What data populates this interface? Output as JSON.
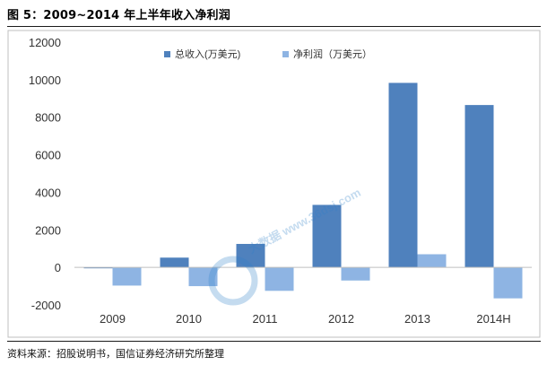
{
  "figure": {
    "title": "图 5：2009~2014 年上半年收入净利润",
    "source": "资料来源：招股说明书，国信证券经济研究所整理",
    "watermark_text": "大数据 www.36dsj.com"
  },
  "colors": {
    "revenue": "#4f81bd",
    "net_profit": "#8eb4e3",
    "grid": "#d9d9d9",
    "frame": "#bfbfbf",
    "axis_text": "#333333"
  },
  "chart_data": {
    "type": "bar",
    "categories": [
      "2009",
      "2010",
      "2011",
      "2012",
      "2013",
      "2014H"
    ],
    "series": [
      {
        "name": "总收入(万美元)",
        "values": [
          -50,
          520,
          1250,
          3330,
          9830,
          8650
        ]
      },
      {
        "name": "净利润（万美元）",
        "values": [
          -970,
          -1000,
          -1250,
          -700,
          700,
          -1650
        ]
      }
    ],
    "yticks": [
      -2000,
      0,
      2000,
      4000,
      6000,
      8000,
      10000,
      12000
    ],
    "ylim": [
      -2000,
      12000
    ],
    "grid": false,
    "legend_position": "top-center",
    "xlabel": "",
    "ylabel": ""
  }
}
